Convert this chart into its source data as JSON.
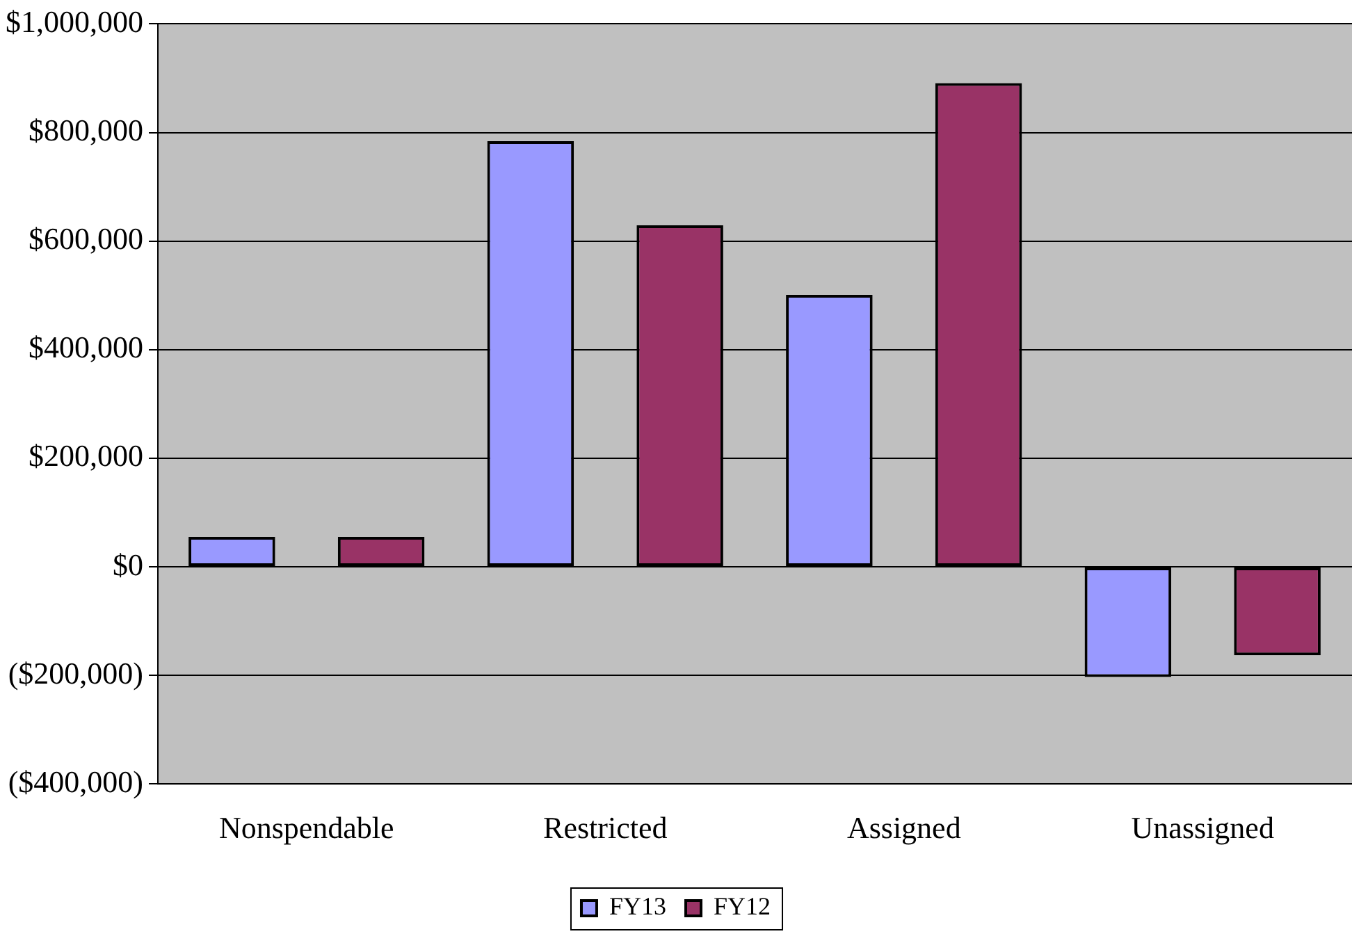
{
  "chart_data": {
    "type": "bar",
    "categories": [
      "Nonspendable",
      "Restricted",
      "Assigned",
      "Unassigned"
    ],
    "series": [
      {
        "name": "FY13",
        "color": "#9999ff",
        "values": [
          55000,
          784000,
          501000,
          -203000
        ]
      },
      {
        "name": "FY12",
        "color": "#993366",
        "values": [
          55000,
          629000,
          891000,
          -163000
        ]
      }
    ],
    "ylim": [
      -400000,
      1000000
    ],
    "yticks": [
      {
        "value": -400000,
        "label": "($400,000)"
      },
      {
        "value": -200000,
        "label": "($200,000)"
      },
      {
        "value": 0,
        "label": "$0"
      },
      {
        "value": 200000,
        "label": "$200,000"
      },
      {
        "value": 400000,
        "label": "$400,000"
      },
      {
        "value": 600000,
        "label": "$600,000"
      },
      {
        "value": 800000,
        "label": "$800,000"
      },
      {
        "value": 1000000,
        "label": "$1,000,000"
      }
    ],
    "grid": "y",
    "legend": "bottom"
  }
}
